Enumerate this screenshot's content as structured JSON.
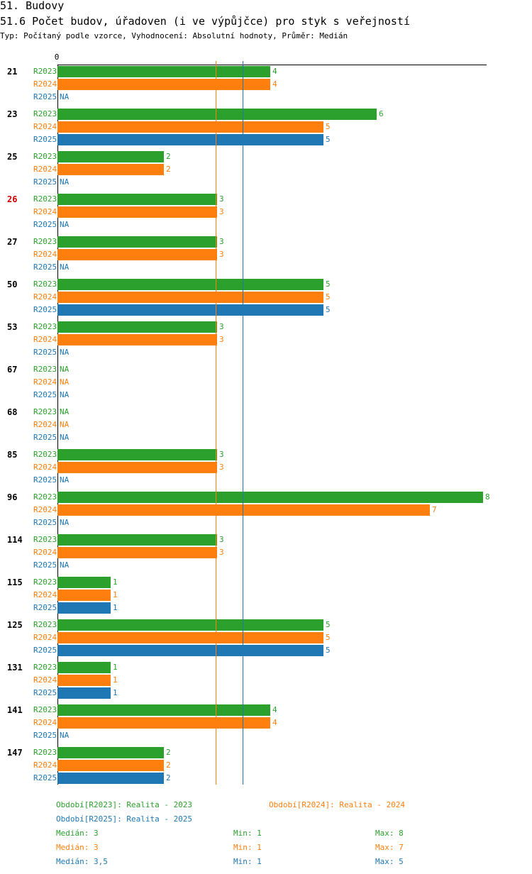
{
  "header": {
    "title": "51. Budovy",
    "subtitle": "51.6 Počet budov, úřadoven (i ve výpůjčce) pro styk s veřejností",
    "type_line": "Typ: Počítaný podle vzorce, Vyhodnocení: Absolutní hodnoty, Průměr: Medián"
  },
  "colors": {
    "R2023": "#2ca02c",
    "R2024": "#ff7f0e",
    "R2025": "#1f77b4",
    "highlight_group": "#cc0000",
    "text": "#000000"
  },
  "chart_data": {
    "type": "bar",
    "orientation": "horizontal",
    "title": "51.6 Počet budov, úřadoven (i ve výpůjčce) pro styk s veřejností",
    "axis_zero_label": "0",
    "xlim": [
      0,
      8
    ],
    "highlight_group": "26",
    "series_names": [
      "R2023",
      "R2024",
      "R2025"
    ],
    "na_label": "NA",
    "groups": [
      {
        "label": "21",
        "values": [
          4,
          4,
          null
        ]
      },
      {
        "label": "23",
        "values": [
          6,
          5,
          5
        ]
      },
      {
        "label": "25",
        "values": [
          2,
          2,
          null
        ]
      },
      {
        "label": "26",
        "values": [
          3,
          3,
          null
        ]
      },
      {
        "label": "27",
        "values": [
          3,
          3,
          null
        ]
      },
      {
        "label": "50",
        "values": [
          5,
          5,
          5
        ]
      },
      {
        "label": "53",
        "values": [
          3,
          3,
          null
        ]
      },
      {
        "label": "67",
        "values": [
          null,
          null,
          null
        ]
      },
      {
        "label": "68",
        "values": [
          null,
          null,
          null
        ]
      },
      {
        "label": "85",
        "values": [
          3,
          3,
          null
        ]
      },
      {
        "label": "96",
        "values": [
          8,
          7,
          null
        ]
      },
      {
        "label": "114",
        "values": [
          3,
          3,
          null
        ]
      },
      {
        "label": "115",
        "values": [
          1,
          1,
          1
        ]
      },
      {
        "label": "125",
        "values": [
          5,
          5,
          5
        ]
      },
      {
        "label": "131",
        "values": [
          1,
          1,
          1
        ]
      },
      {
        "label": "141",
        "values": [
          4,
          4,
          null
        ]
      },
      {
        "label": "147",
        "values": [
          2,
          2,
          2
        ]
      }
    ],
    "median_lines": [
      {
        "series": "R2024",
        "value": 3
      },
      {
        "series": "R2025",
        "value": 3.5
      }
    ]
  },
  "legend": {
    "r2023": "Období[R2023]: Realita - 2023",
    "r2024": "Období[R2024]: Realita - 2024",
    "r2025": "Období[R2025]: Realita - 2025"
  },
  "stats": {
    "r2023": {
      "median": "Medián: 3",
      "min": "Min: 1",
      "max": "Max: 8"
    },
    "r2024": {
      "median": "Medián: 3",
      "min": "Min: 1",
      "max": "Max: 7"
    },
    "r2025": {
      "median": "Medián: 3,5",
      "min": "Min: 1",
      "max": "Max: 5"
    }
  }
}
